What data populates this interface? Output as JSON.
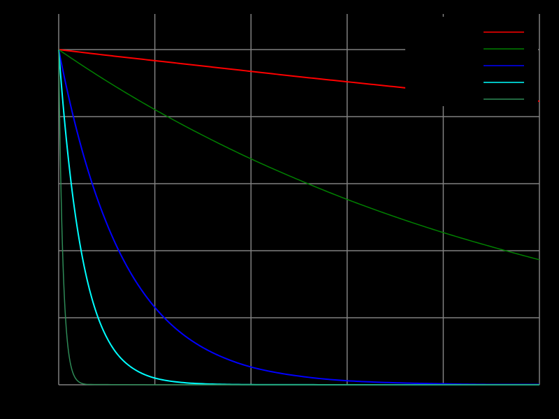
{
  "chart_data": {
    "type": "line",
    "title": "",
    "xlabel": "",
    "ylabel": "",
    "xlim": [
      0,
      5
    ],
    "ylim": [
      0,
      1
    ],
    "grid": true,
    "legend_position": "top-right",
    "series": [
      {
        "color": "#ff0000",
        "x": [
          0,
          0.5,
          1,
          1.5,
          2,
          2.5,
          3,
          3.5,
          4,
          4.5,
          5
        ],
        "y": [
          1.0,
          0.983,
          0.967,
          0.951,
          0.935,
          0.919,
          0.904,
          0.889,
          0.874,
          0.86,
          0.846
        ]
      },
      {
        "color": "#008000",
        "x": [
          0,
          0.5,
          1,
          1.5,
          2,
          2.5,
          3,
          3.5,
          4,
          4.5,
          5
        ],
        "y": [
          1.0,
          0.906,
          0.821,
          0.744,
          0.674,
          0.611,
          0.553,
          0.501,
          0.454,
          0.412,
          0.373
        ]
      },
      {
        "color": "#0000ff",
        "x": [
          0,
          0.25,
          0.5,
          0.75,
          1,
          1.25,
          1.5,
          1.75,
          2,
          2.5,
          3,
          3.5,
          4,
          4.5,
          5
        ],
        "y": [
          1.0,
          0.693,
          0.481,
          0.333,
          0.231,
          0.16,
          0.111,
          0.077,
          0.053,
          0.026,
          0.012,
          0.006,
          0.003,
          0.001,
          0.001
        ]
      },
      {
        "color": "#00ffff",
        "x": [
          0,
          0.05,
          0.1,
          0.15,
          0.2,
          0.3,
          0.4,
          0.5,
          0.6,
          0.8,
          1,
          1.5,
          2,
          3,
          4,
          5
        ],
        "y": [
          1.0,
          0.822,
          0.676,
          0.555,
          0.456,
          0.308,
          0.208,
          0.141,
          0.095,
          0.044,
          0.02,
          0.003,
          0.0004,
          0.0,
          0.0,
          0.0
        ]
      },
      {
        "color": "#2e8b57",
        "x": [
          0,
          0.01,
          0.02,
          0.03,
          0.04,
          0.05,
          0.06,
          0.08,
          0.1,
          0.15,
          0.2,
          0.3,
          1,
          5
        ],
        "y": [
          1.0,
          0.797,
          0.636,
          0.507,
          0.404,
          0.322,
          0.257,
          0.163,
          0.104,
          0.034,
          0.011,
          0.001,
          0.0,
          0.0
        ]
      }
    ]
  },
  "colors": {
    "background": "#000000",
    "grid": "#808080"
  }
}
